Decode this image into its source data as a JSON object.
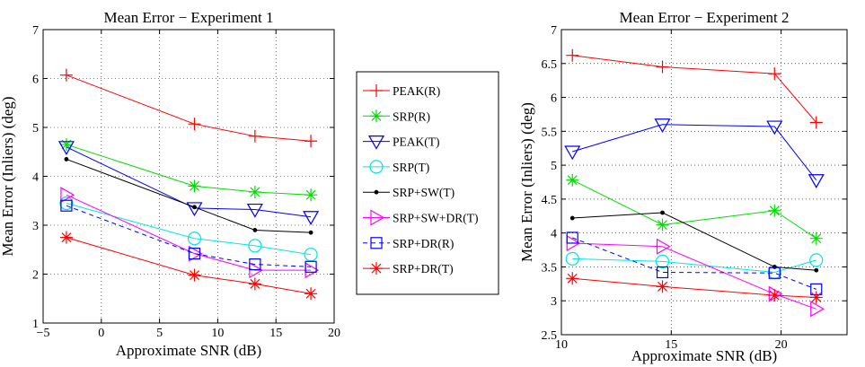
{
  "chart_data": [
    {
      "type": "line",
      "title": "Mean Error − Experiment 1",
      "xlabel": "Approximate SNR (dB)",
      "ylabel": "Mean Error (Inliers) (deg)",
      "xlim": [
        -5,
        20
      ],
      "ylim": [
        1,
        7
      ],
      "xticks": [
        -5,
        0,
        5,
        10,
        15,
        20
      ],
      "xtick_labels": [
        "−5",
        "0",
        "5",
        "10",
        "15",
        "20"
      ],
      "yticks": [
        1,
        2,
        3,
        4,
        5,
        6,
        7
      ],
      "ytick_labels": [
        "1",
        "2",
        "3",
        "4",
        "5",
        "6",
        "7"
      ],
      "grid": true,
      "legend": "outside-right",
      "series": [
        {
          "name": "PEAK(R)",
          "color": "#ff0000",
          "marker": "plus",
          "dash": "solid",
          "x": [
            -3,
            8,
            13.2,
            18
          ],
          "y": [
            6.07,
            5.07,
            4.82,
            4.72
          ]
        },
        {
          "name": "SRP(R)",
          "color": "#00dd00",
          "marker": "asterisk",
          "dash": "solid",
          "x": [
            -3,
            8,
            13.2,
            18
          ],
          "y": [
            4.65,
            3.8,
            3.68,
            3.62
          ]
        },
        {
          "name": "PEAK(T)",
          "color": "#0000ff",
          "marker": "triangle-down",
          "dash": "solid",
          "x": [
            -3,
            8,
            13.2,
            18
          ],
          "y": [
            4.6,
            3.35,
            3.32,
            3.17
          ]
        },
        {
          "name": "SRP(T)",
          "color": "#00e5e5",
          "marker": "circle",
          "dash": "solid",
          "x": [
            -3,
            8,
            13.2,
            18
          ],
          "y": [
            3.45,
            2.73,
            2.58,
            2.4
          ]
        },
        {
          "name": "SRP+SW(T)",
          "color": "#000000",
          "marker": "dot",
          "dash": "solid",
          "x": [
            -3,
            8,
            13.2,
            18
          ],
          "y": [
            4.35,
            3.37,
            2.9,
            2.85
          ]
        },
        {
          "name": "SRP+SW+DR(T)",
          "color": "#ff00ff",
          "marker": "triangle-right",
          "dash": "solid",
          "x": [
            -3,
            8,
            13.2,
            18
          ],
          "y": [
            3.62,
            2.42,
            2.08,
            2.08
          ]
        },
        {
          "name": "SRP+DR(R)",
          "color": "#0000ff",
          "marker": "square",
          "dash": "dashed",
          "x": [
            -3,
            8,
            13.2,
            18
          ],
          "y": [
            3.4,
            2.42,
            2.2,
            2.15
          ]
        },
        {
          "name": "SRP+DR(T)",
          "color": "#ff0000",
          "marker": "asterisk",
          "dash": "solid",
          "x": [
            -3,
            8,
            13.2,
            18
          ],
          "y": [
            2.75,
            1.98,
            1.8,
            1.6
          ]
        }
      ]
    },
    {
      "type": "line",
      "title": "Mean Error − Experiment 2",
      "xlabel": "Approximate SNR (dB)",
      "ylabel": "Mean Error (Inliers) (deg)",
      "xlim": [
        10,
        23
      ],
      "ylim": [
        2.5,
        7
      ],
      "xticks": [
        10,
        15,
        20
      ],
      "xtick_labels": [
        "10",
        "15",
        "20"
      ],
      "yticks": [
        2.5,
        3,
        3.5,
        4,
        4.5,
        5,
        5.5,
        6,
        6.5,
        7
      ],
      "ytick_labels": [
        "2.5",
        "3",
        "3.5",
        "4",
        "4.5",
        "5",
        "5.5",
        "6",
        "6.5",
        "7"
      ],
      "grid": true,
      "series": [
        {
          "name": "PEAK(R)",
          "color": "#ff0000",
          "marker": "plus",
          "dash": "solid",
          "x": [
            10.5,
            14.6,
            19.7,
            21.6
          ],
          "y": [
            6.62,
            6.45,
            6.35,
            5.63
          ]
        },
        {
          "name": "SRP(R)",
          "color": "#00dd00",
          "marker": "asterisk",
          "dash": "solid",
          "x": [
            10.5,
            14.6,
            19.7,
            21.6
          ],
          "y": [
            4.78,
            4.12,
            4.33,
            3.92
          ]
        },
        {
          "name": "PEAK(T)",
          "color": "#0000ff",
          "marker": "triangle-down",
          "dash": "solid",
          "x": [
            10.5,
            14.6,
            19.7,
            21.6
          ],
          "y": [
            5.2,
            5.6,
            5.57,
            4.78
          ]
        },
        {
          "name": "SRP(T)",
          "color": "#00e5e5",
          "marker": "circle",
          "dash": "solid",
          "x": [
            10.5,
            14.6,
            19.7,
            21.6
          ],
          "y": [
            3.62,
            3.58,
            3.42,
            3.6
          ]
        },
        {
          "name": "SRP+SW(T)",
          "color": "#000000",
          "marker": "dot",
          "dash": "solid",
          "x": [
            10.5,
            14.6,
            19.7,
            21.6
          ],
          "y": [
            4.22,
            4.3,
            3.5,
            3.45
          ]
        },
        {
          "name": "SRP+SW+DR(T)",
          "color": "#ff00ff",
          "marker": "triangle-right",
          "dash": "solid",
          "x": [
            10.5,
            14.6,
            19.7,
            21.6
          ],
          "y": [
            3.85,
            3.8,
            3.1,
            2.88
          ]
        },
        {
          "name": "SRP+DR(R)",
          "color": "#0000ff",
          "marker": "square",
          "dash": "dashed",
          "x": [
            10.5,
            14.6,
            19.7,
            21.6
          ],
          "y": [
            3.93,
            3.42,
            3.41,
            3.17
          ]
        },
        {
          "name": "SRP+DR(T)",
          "color": "#ff0000",
          "marker": "asterisk",
          "dash": "solid",
          "x": [
            10.5,
            14.6,
            19.7,
            21.6
          ],
          "y": [
            3.33,
            3.21,
            3.08,
            3.05
          ]
        }
      ]
    }
  ]
}
